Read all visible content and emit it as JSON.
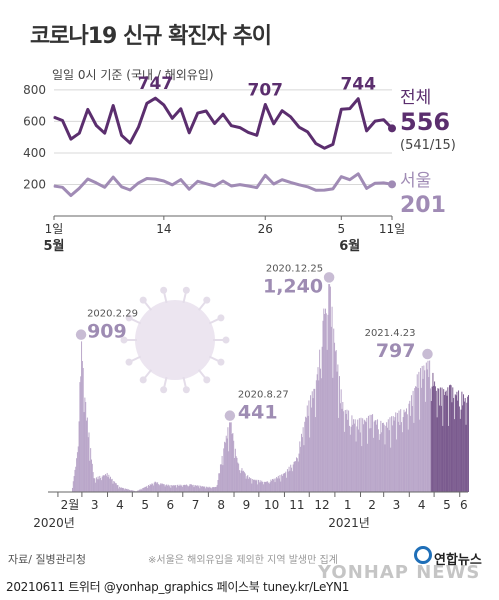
{
  "title": "코로나19 신규 확진자 추이",
  "subtitle": "일일 0시 기준 (국내 / 해외유입)",
  "colors": {
    "total": "#5b2e6e",
    "seoul": "#a08bb5",
    "bars": "#b9a6c9",
    "bars_dark": "#7a5a8e",
    "grid": "#d8d8d8",
    "axis": "#666666"
  },
  "chart_data": [
    {
      "type": "line",
      "yticks": [
        200,
        400,
        600,
        800
      ],
      "ylim": [
        0,
        850
      ],
      "x_ticks": [
        {
          "index": 0,
          "label": "1일"
        },
        {
          "index": 13,
          "label": "14"
        },
        {
          "index": 25,
          "label": "26"
        },
        {
          "index": 34,
          "label": "5"
        },
        {
          "index": 40,
          "label": "11일"
        }
      ],
      "month_labels": [
        {
          "index": 0,
          "label": "5월"
        },
        {
          "index": 35,
          "label": "6월"
        }
      ],
      "series": [
        {
          "name": "전체",
          "values": [
            627,
            606,
            488,
            525,
            676,
            574,
            525,
            701,
            511,
            463,
            564,
            715,
            747,
            705,
            620,
            680,
            528,
            653,
            666,
            587,
            646,
            573,
            561,
            530,
            512,
            707,
            585,
            668,
            629,
            563,
            534,
            459,
            430,
            454,
            677,
            681,
            744,
            540,
            602,
            611,
            556
          ]
        },
        {
          "name": "서울",
          "values": [
            190,
            182,
            130,
            176,
            235,
            210,
            182,
            247,
            185,
            165,
            210,
            238,
            234,
            222,
            197,
            231,
            170,
            220,
            205,
            190,
            222,
            190,
            199,
            190,
            180,
            258,
            203,
            230,
            213,
            198,
            185,
            163,
            164,
            172,
            249,
            230,
            268,
            175,
            208,
            210,
            201
          ]
        }
      ],
      "peak_labels": [
        {
          "index": 12,
          "label": "747"
        },
        {
          "index": 25,
          "label": "707"
        },
        {
          "index": 36,
          "label": "744"
        }
      ],
      "legend": {
        "total_name": "전체",
        "total_value": "556",
        "total_breakdown": "(541/15)",
        "seoul_name": "서울",
        "seoul_value": "201"
      }
    },
    {
      "type": "bar",
      "x_range": [
        "2020-01-20",
        "2021-06-11"
      ],
      "ylim": [
        0,
        1300
      ],
      "month_ticks": [
        "2월",
        "3",
        "4",
        "5",
        "6",
        "7",
        "8",
        "9",
        "10",
        "11",
        "12",
        "1",
        "2",
        "3",
        "4",
        "5",
        "6"
      ],
      "year_labels": [
        "2020년",
        "2021년"
      ],
      "annotations": [
        {
          "date": "2020.2.29",
          "value": "909"
        },
        {
          "date": "2020.8.27",
          "value": "441"
        },
        {
          "date": "2020.12.25",
          "value": "1,240"
        },
        {
          "date": "2021.4.23",
          "value": "797"
        }
      ]
    }
  ],
  "footer": {
    "source": "자료/ 질병관리청",
    "note": "※서울은 해외유입을 제외한 지역 발생만 집계",
    "credit": "20210611 트위터 @yonhap_graphics  페이스북 tuney.kr/LeYN1",
    "logo": "연합뉴스",
    "watermark": "YONHAP NEWS"
  }
}
